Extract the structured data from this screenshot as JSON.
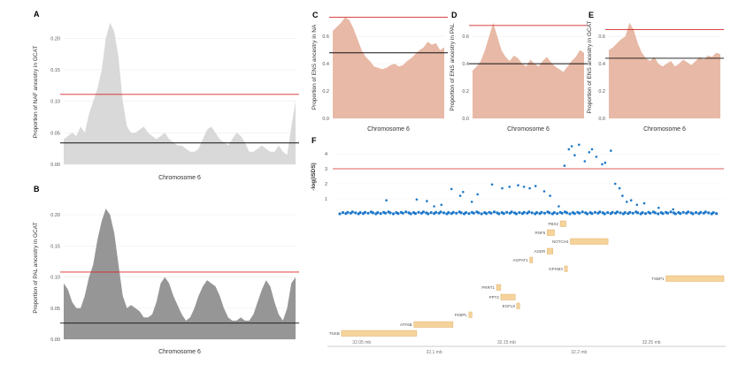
{
  "chart_data": [
    {
      "id": "A",
      "panel_label": "A",
      "type": "area",
      "ylabel": "Proportion of NAF ancestry in GCAT",
      "xlabel": "Chromosome 6",
      "yticks": [
        "0.00",
        "0.05",
        "0.10",
        "0.15",
        "0.20"
      ],
      "ylim": [
        0,
        0.23
      ],
      "fill": "#d9d9d9",
      "red_line": 0.111,
      "black_line": 0.034,
      "values": [
        0.04,
        0.045,
        0.05,
        0.045,
        0.06,
        0.05,
        0.08,
        0.1,
        0.12,
        0.15,
        0.2,
        0.225,
        0.21,
        0.17,
        0.1,
        0.06,
        0.05,
        0.05,
        0.055,
        0.06,
        0.05,
        0.045,
        0.04,
        0.045,
        0.05,
        0.04,
        0.035,
        0.03,
        0.03,
        0.025,
        0.02,
        0.02,
        0.025,
        0.04,
        0.055,
        0.06,
        0.05,
        0.04,
        0.035,
        0.03,
        0.04,
        0.05,
        0.045,
        0.035,
        0.02,
        0.02,
        0.025,
        0.03,
        0.025,
        0.02,
        0.02,
        0.03,
        0.02,
        0.015,
        0.06,
        0.1
      ]
    },
    {
      "id": "B",
      "panel_label": "B",
      "type": "area",
      "ylabel": "Proportion of PAL ancestry in GCAT",
      "xlabel": "Chromosome 6",
      "yticks": [
        "0.00",
        "0.05",
        "0.10",
        "0.15",
        "0.20"
      ],
      "ylim": [
        0,
        0.23
      ],
      "fill": "#969696",
      "red_line": 0.108,
      "black_line": 0.026,
      "values": [
        0.09,
        0.08,
        0.06,
        0.05,
        0.05,
        0.07,
        0.1,
        0.12,
        0.16,
        0.19,
        0.21,
        0.2,
        0.17,
        0.12,
        0.07,
        0.05,
        0.055,
        0.05,
        0.045,
        0.035,
        0.035,
        0.04,
        0.06,
        0.09,
        0.1,
        0.09,
        0.07,
        0.055,
        0.04,
        0.03,
        0.035,
        0.05,
        0.07,
        0.085,
        0.095,
        0.09,
        0.085,
        0.07,
        0.05,
        0.035,
        0.03,
        0.03,
        0.035,
        0.03,
        0.03,
        0.04,
        0.06,
        0.08,
        0.095,
        0.085,
        0.06,
        0.04,
        0.03,
        0.05,
        0.09,
        0.1
      ]
    },
    {
      "id": "C",
      "panel_label": "C",
      "type": "area",
      "ylabel": "Proportion of ENS ancestry in NA",
      "xlabel": "Chromosome 6",
      "yticks": [
        "0.0",
        "0.2",
        "0.4",
        "0.6"
      ],
      "ylim": [
        0,
        0.75
      ],
      "fill": "#e8b9a6",
      "red_line": 0.74,
      "black_line": 0.48,
      "values": [
        0.64,
        0.67,
        0.7,
        0.74,
        0.72,
        0.66,
        0.58,
        0.5,
        0.45,
        0.42,
        0.38,
        0.37,
        0.36,
        0.37,
        0.39,
        0.4,
        0.38,
        0.39,
        0.42,
        0.44,
        0.47,
        0.5,
        0.52,
        0.56,
        0.54,
        0.55,
        0.5,
        0.52
      ]
    },
    {
      "id": "D",
      "panel_label": "D",
      "type": "area",
      "ylabel": "Proportion of ENS ancestry in PAL",
      "xlabel": "Chromosome 6",
      "yticks": [
        "0.0",
        "0.2",
        "0.4",
        "0.6"
      ],
      "ylim": [
        0,
        0.75
      ],
      "fill": "#e8b9a6",
      "red_line": 0.68,
      "black_line": 0.4,
      "values": [
        0.35,
        0.38,
        0.42,
        0.5,
        0.6,
        0.7,
        0.6,
        0.5,
        0.45,
        0.42,
        0.46,
        0.44,
        0.4,
        0.38,
        0.43,
        0.4,
        0.38,
        0.42,
        0.45,
        0.41,
        0.38,
        0.36,
        0.34,
        0.38,
        0.42,
        0.45,
        0.5,
        0.48
      ]
    },
    {
      "id": "E",
      "panel_label": "E",
      "type": "area",
      "ylabel": "Proportion of ENS ancestry in GCAT",
      "xlabel": "Chromosome 6",
      "yticks": [
        "0.0",
        "0.2",
        "0.4",
        "0.6"
      ],
      "ylim": [
        0,
        0.75
      ],
      "fill": "#e8b9a6",
      "red_line": 0.65,
      "black_line": 0.44,
      "values": [
        0.5,
        0.52,
        0.55,
        0.58,
        0.6,
        0.7,
        0.65,
        0.55,
        0.48,
        0.44,
        0.42,
        0.45,
        0.4,
        0.38,
        0.4,
        0.42,
        0.38,
        0.4,
        0.43,
        0.41,
        0.39,
        0.42,
        0.45,
        0.43,
        0.46,
        0.45,
        0.48,
        0.47
      ]
    },
    {
      "id": "F",
      "panel_label": "F",
      "type": "scatter",
      "ylabel": "-log(iSDS)",
      "yticks": [
        "1",
        "2",
        "3",
        "4"
      ],
      "ylim": [
        0,
        5
      ],
      "xlim": [
        32.03,
        32.3
      ],
      "threshold": 3.0,
      "point_color": "#1f78c8",
      "points": [
        [
          32.067,
          0.9
        ],
        [
          32.088,
          0.95
        ],
        [
          32.095,
          0.85
        ],
        [
          32.1,
          0.5
        ],
        [
          32.105,
          0.6
        ],
        [
          32.112,
          1.65
        ],
        [
          32.118,
          1.2
        ],
        [
          32.12,
          1.45
        ],
        [
          32.126,
          0.8
        ],
        [
          32.13,
          1.3
        ],
        [
          32.14,
          1.95
        ],
        [
          32.147,
          1.7
        ],
        [
          32.152,
          1.8
        ],
        [
          32.158,
          1.9
        ],
        [
          32.162,
          1.8
        ],
        [
          32.166,
          1.7
        ],
        [
          32.17,
          1.85
        ],
        [
          32.176,
          1.5
        ],
        [
          32.18,
          1.2
        ],
        [
          32.186,
          0.5
        ],
        [
          32.19,
          3.2
        ],
        [
          32.193,
          4.3
        ],
        [
          32.195,
          4.5
        ],
        [
          32.197,
          3.9
        ],
        [
          32.2,
          4.6
        ],
        [
          32.204,
          3.5
        ],
        [
          32.207,
          4.1
        ],
        [
          32.209,
          4.3
        ],
        [
          32.212,
          3.8
        ],
        [
          32.216,
          3.3
        ],
        [
          32.218,
          3.4
        ],
        [
          32.222,
          4.2
        ],
        [
          32.225,
          2.0
        ],
        [
          32.228,
          1.7
        ],
        [
          32.23,
          1.2
        ],
        [
          32.233,
          0.8
        ],
        [
          32.236,
          0.9
        ],
        [
          32.24,
          0.6
        ],
        [
          32.245,
          0.7
        ],
        [
          32.255,
          0.4
        ],
        [
          32.265,
          0.3
        ]
      ],
      "genes": [
        {
          "name": "PBX2",
          "start": 32.187,
          "end": 32.191
        },
        {
          "name": "RNF5",
          "start": 32.178,
          "end": 32.183
        },
        {
          "name": "NOTCH4",
          "start": 32.194,
          "end": 32.22
        },
        {
          "name": "AGER",
          "start": 32.178,
          "end": 32.182
        },
        {
          "name": "AGPAT1",
          "start": 32.166,
          "end": 32.168
        },
        {
          "name": "GPSM3",
          "start": 32.19,
          "end": 32.192
        },
        {
          "name": "TSBP1",
          "start": 32.26,
          "end": 32.3
        },
        {
          "name": "PRRT1",
          "start": 32.143,
          "end": 32.146
        },
        {
          "name": "PPT2",
          "start": 32.146,
          "end": 32.156
        },
        {
          "name": "EGFL8",
          "start": 32.157,
          "end": 32.159
        },
        {
          "name": "FKBPL",
          "start": 32.124,
          "end": 32.126
        },
        {
          "name": "ATF6B",
          "start": 32.086,
          "end": 32.113
        },
        {
          "name": "TNXB",
          "start": 32.036,
          "end": 32.088
        }
      ],
      "axis_top_ticks": [
        "32.05 mb",
        "32.15 mb",
        "32.25 mb"
      ],
      "axis_bottom_ticks": [
        "32.1 mb",
        "32.2 mb"
      ]
    }
  ]
}
